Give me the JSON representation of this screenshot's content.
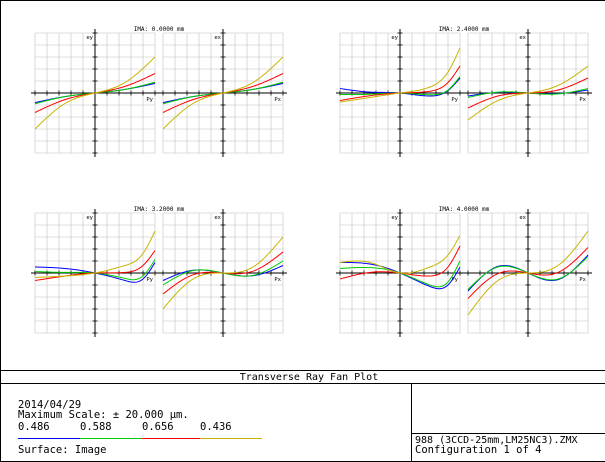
{
  "colors": {
    "0.486": "#0000ff",
    "0.588": "#00cc00",
    "0.656": "#ff0000",
    "0.436": "#c8b400"
  },
  "chart_data": {
    "type": "line",
    "title": "Transverse Ray Fan Plot",
    "max_scale": "± 20.000 µm",
    "x_range": [
      -1,
      1
    ],
    "y_range": [
      -20,
      20
    ],
    "grid": true,
    "wavelengths": [
      "0.486",
      "0.588",
      "0.656",
      "0.436"
    ],
    "fields": [
      {
        "ima_label": "IMA: 0.0000 mm",
        "tangential": {
          "axis_label": "ey",
          "x_label": "Py",
          "series": [
            {
              "wavelength": "0.486",
              "x": [
                -1,
                -0.5,
                0,
                0.5,
                1
              ],
              "y": [
                -3.2,
                -1.2,
                0,
                1.2,
                3.2
              ]
            },
            {
              "wavelength": "0.588",
              "x": [
                -1,
                -0.5,
                0,
                0.5,
                1
              ],
              "y": [
                -3.6,
                -1.2,
                0,
                1.2,
                3.6
              ]
            },
            {
              "wavelength": "0.656",
              "x": [
                -1,
                -0.5,
                0,
                0.5,
                1
              ],
              "y": [
                -6.5,
                -2.2,
                0,
                2.2,
                6.5
              ]
            },
            {
              "wavelength": "0.436",
              "x": [
                -1,
                -0.5,
                0,
                0.5,
                1
              ],
              "y": [
                -12.0,
                -3.5,
                0,
                3.5,
                12.0
              ]
            }
          ]
        },
        "sagittal": {
          "axis_label": "ex",
          "x_label": "Px",
          "series": [
            {
              "wavelength": "0.486",
              "x": [
                -1,
                -0.5,
                0,
                0.5,
                1
              ],
              "y": [
                -3.2,
                -1.2,
                0,
                1.2,
                3.2
              ]
            },
            {
              "wavelength": "0.588",
              "x": [
                -1,
                -0.5,
                0,
                0.5,
                1
              ],
              "y": [
                -3.6,
                -1.2,
                0,
                1.2,
                3.6
              ]
            },
            {
              "wavelength": "0.656",
              "x": [
                -1,
                -0.5,
                0,
                0.5,
                1
              ],
              "y": [
                -6.5,
                -2.2,
                0,
                2.2,
                6.5
              ]
            },
            {
              "wavelength": "0.436",
              "x": [
                -1,
                -0.5,
                0,
                0.5,
                1
              ],
              "y": [
                -12.0,
                -3.5,
                0,
                3.5,
                12.0
              ]
            }
          ]
        }
      },
      {
        "ima_label": "IMA: 2.4000 mm",
        "tangential": {
          "axis_label": "ey",
          "x_label": "Py",
          "series": [
            {
              "wavelength": "0.486",
              "x": [
                -1,
                -0.5,
                0,
                0.5,
                0.8,
                1
              ],
              "y": [
                1.5,
                0.3,
                0,
                -1.0,
                0.8,
                5.0
              ]
            },
            {
              "wavelength": "0.588",
              "x": [
                -1,
                -0.5,
                0,
                0.5,
                0.8,
                1
              ],
              "y": [
                -0.5,
                -0.4,
                0,
                -0.6,
                1.0,
                5.5
              ]
            },
            {
              "wavelength": "0.656",
              "x": [
                -1,
                -0.5,
                0,
                0.5,
                0.8,
                1
              ],
              "y": [
                -2.5,
                -0.9,
                0,
                0.6,
                3.5,
                9.0
              ]
            },
            {
              "wavelength": "0.436",
              "x": [
                -1,
                -0.5,
                0,
                0.5,
                0.8,
                1
              ],
              "y": [
                -3.0,
                -1.5,
                0,
                2.0,
                7.0,
                15.0
              ]
            }
          ]
        },
        "sagittal": {
          "axis_label": "ex",
          "x_label": "Px",
          "series": [
            {
              "wavelength": "0.486",
              "x": [
                -1,
                -0.5,
                0,
                0.5,
                1
              ],
              "y": [
                -1.0,
                0.2,
                0,
                -0.2,
                1.0
              ]
            },
            {
              "wavelength": "0.588",
              "x": [
                -1,
                -0.5,
                0,
                0.5,
                1
              ],
              "y": [
                -1.5,
                0.3,
                0,
                -0.3,
                1.5
              ]
            },
            {
              "wavelength": "0.656",
              "x": [
                -1,
                -0.5,
                0,
                0.5,
                1
              ],
              "y": [
                -5.0,
                -1.0,
                0,
                1.0,
                5.0
              ]
            },
            {
              "wavelength": "0.436",
              "x": [
                -1,
                -0.5,
                0,
                0.5,
                1
              ],
              "y": [
                -9.0,
                -2.5,
                0,
                2.5,
                9.0
              ]
            }
          ]
        }
      },
      {
        "ima_label": "IMA: 3.2000 mm",
        "tangential": {
          "axis_label": "ey",
          "x_label": "Py",
          "series": [
            {
              "wavelength": "0.486",
              "x": [
                -1,
                -0.5,
                0,
                0.5,
                0.8,
                1
              ],
              "y": [
                2.0,
                1.5,
                0,
                -2.5,
                -2.0,
                3.5
              ]
            },
            {
              "wavelength": "0.588",
              "x": [
                -1,
                -0.5,
                0,
                0.5,
                0.8,
                1
              ],
              "y": [
                0.5,
                0.2,
                0,
                -1.8,
                -1.0,
                4.5
              ]
            },
            {
              "wavelength": "0.656",
              "x": [
                -1,
                -0.5,
                0,
                0.5,
                0.8,
                1
              ],
              "y": [
                -2.5,
                -1.0,
                0,
                0.2,
                2.5,
                7.5
              ]
            },
            {
              "wavelength": "0.436",
              "x": [
                -1,
                -0.5,
                0,
                0.5,
                0.8,
                1
              ],
              "y": [
                -1.5,
                -1.0,
                0,
                2.5,
                6.5,
                14.0
              ]
            }
          ]
        },
        "sagittal": {
          "axis_label": "ex",
          "x_label": "Px",
          "series": [
            {
              "wavelength": "0.486",
              "x": [
                -1,
                -0.5,
                0,
                0.5,
                1
              ],
              "y": [
                -2.5,
                0.9,
                0,
                -0.9,
                2.5
              ]
            },
            {
              "wavelength": "0.588",
              "x": [
                -1,
                -0.5,
                0,
                0.5,
                1
              ],
              "y": [
                -4.0,
                0.8,
                0,
                -0.8,
                4.0
              ]
            },
            {
              "wavelength": "0.656",
              "x": [
                -1,
                -0.5,
                0,
                0.5,
                1
              ],
              "y": [
                -7.0,
                -0.6,
                0,
                0.6,
                7.0
              ]
            },
            {
              "wavelength": "0.436",
              "x": [
                -1,
                -0.5,
                0,
                0.5,
                1
              ],
              "y": [
                -12.0,
                -2.0,
                0,
                2.0,
                12.0
              ]
            }
          ]
        }
      },
      {
        "ima_label": "IMA: 4.0000 mm",
        "tangential": {
          "axis_label": "ey",
          "x_label": "Py",
          "series": [
            {
              "wavelength": "0.486",
              "x": [
                -1,
                -0.5,
                0,
                0.5,
                0.8,
                1
              ],
              "y": [
                3.5,
                3.0,
                0,
                -4.5,
                -4.0,
                2.0
              ]
            },
            {
              "wavelength": "0.588",
              "x": [
                -1,
                -0.5,
                0,
                0.5,
                0.8,
                1
              ],
              "y": [
                1.5,
                1.8,
                0,
                -4.0,
                -3.0,
                4.0
              ]
            },
            {
              "wavelength": "0.656",
              "x": [
                -1,
                -0.5,
                0,
                0.5,
                0.8,
                1
              ],
              "y": [
                -2.0,
                0.2,
                0,
                -1.0,
                2.0,
                9.0
              ]
            },
            {
              "wavelength": "0.436",
              "x": [
                -1,
                -0.5,
                0,
                0.5,
                0.8,
                1
              ],
              "y": [
                3.5,
                3.5,
                0,
                2.0,
                6.0,
                12.5
              ]
            }
          ]
        },
        "sagittal": {
          "axis_label": "ex",
          "x_label": "Px",
          "series": [
            {
              "wavelength": "0.486",
              "x": [
                -1,
                -0.5,
                0,
                0.5,
                1
              ],
              "y": [
                -6.0,
                2.2,
                0,
                -2.2,
                6.0
              ]
            },
            {
              "wavelength": "0.588",
              "x": [
                -1,
                -0.5,
                0,
                0.5,
                1
              ],
              "y": [
                -5.5,
                2.0,
                0,
                -2.0,
                5.5
              ]
            },
            {
              "wavelength": "0.656",
              "x": [
                -1,
                -0.5,
                0,
                0.5,
                1
              ],
              "y": [
                -8.5,
                -0.2,
                0,
                0.2,
                8.5
              ]
            },
            {
              "wavelength": "0.436",
              "x": [
                -1,
                -0.5,
                0,
                0.5,
                1
              ],
              "y": [
                -14.0,
                -2.5,
                0,
                2.5,
                14.0
              ]
            }
          ]
        }
      }
    ]
  },
  "footer": {
    "title": "Transverse Ray Fan Plot",
    "date": "2014/04/29",
    "max_scale": "Maximum Scale: ± 20.000 µm.",
    "wavelength_labels": [
      "0.486",
      "0.588",
      "0.656",
      "0.436"
    ],
    "surface": "Surface: Image",
    "file_name": "988 (3CCD-25mm,LM25NC3).ZMX",
    "configuration": "Configuration 1 of 4"
  }
}
